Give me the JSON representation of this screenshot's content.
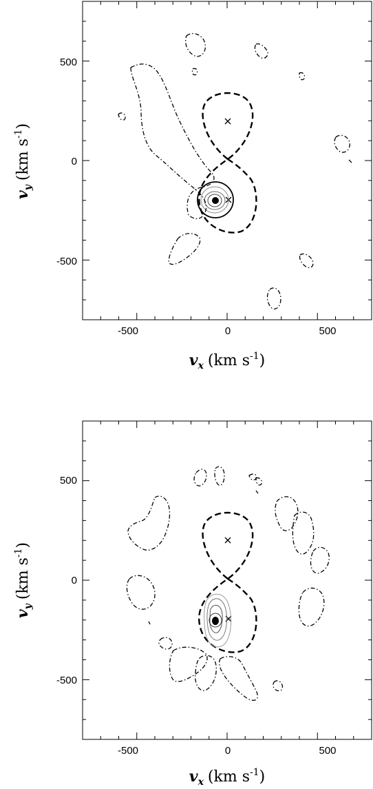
{
  "chart_data": [
    {
      "type": "contour",
      "xlabel": "v_x (km s^-1)",
      "ylabel": "v_y (km s^-1)",
      "xlabel_parts": {
        "symbol": "v",
        "sub": "x",
        "unit": "(km s",
        "exp": "-1",
        "close": ")"
      },
      "ylabel_parts": {
        "symbol": "v",
        "sub": "y",
        "unit": "(km s",
        "exp": "-1",
        "close": ")"
      },
      "xlim": [
        -800,
        800
      ],
      "ylim": [
        -800,
        800
      ],
      "x_tick_labels": [
        "-500",
        "0",
        "500"
      ],
      "y_tick_labels": [
        "500",
        "0",
        "-500"
      ],
      "markers": [
        {
          "symbol": "x",
          "x": 0,
          "y": 200
        },
        {
          "symbol": "x",
          "x": 0,
          "y": -195
        }
      ],
      "emission_peak": {
        "x": -65,
        "y": -200
      }
    },
    {
      "type": "contour",
      "xlabel": "v_x (km s^-1)",
      "ylabel": "v_y (km s^-1)",
      "xlabel_parts": {
        "symbol": "v",
        "sub": "x",
        "unit": "(km s",
        "exp": "-1",
        "close": ")"
      },
      "ylabel_parts": {
        "symbol": "v",
        "sub": "y",
        "unit": "(km s",
        "exp": "-1",
        "close": ")"
      },
      "xlim": [
        -800,
        800
      ],
      "ylim": [
        -800,
        800
      ],
      "x_tick_labels": [
        "-500",
        "0",
        "500"
      ],
      "y_tick_labels": [
        "500",
        "0",
        "-500"
      ],
      "markers": [
        {
          "symbol": "x",
          "x": 0,
          "y": 200
        },
        {
          "symbol": "x",
          "x": 0,
          "y": -195
        }
      ],
      "emission_peak": {
        "x": -65,
        "y": -200
      }
    }
  ]
}
